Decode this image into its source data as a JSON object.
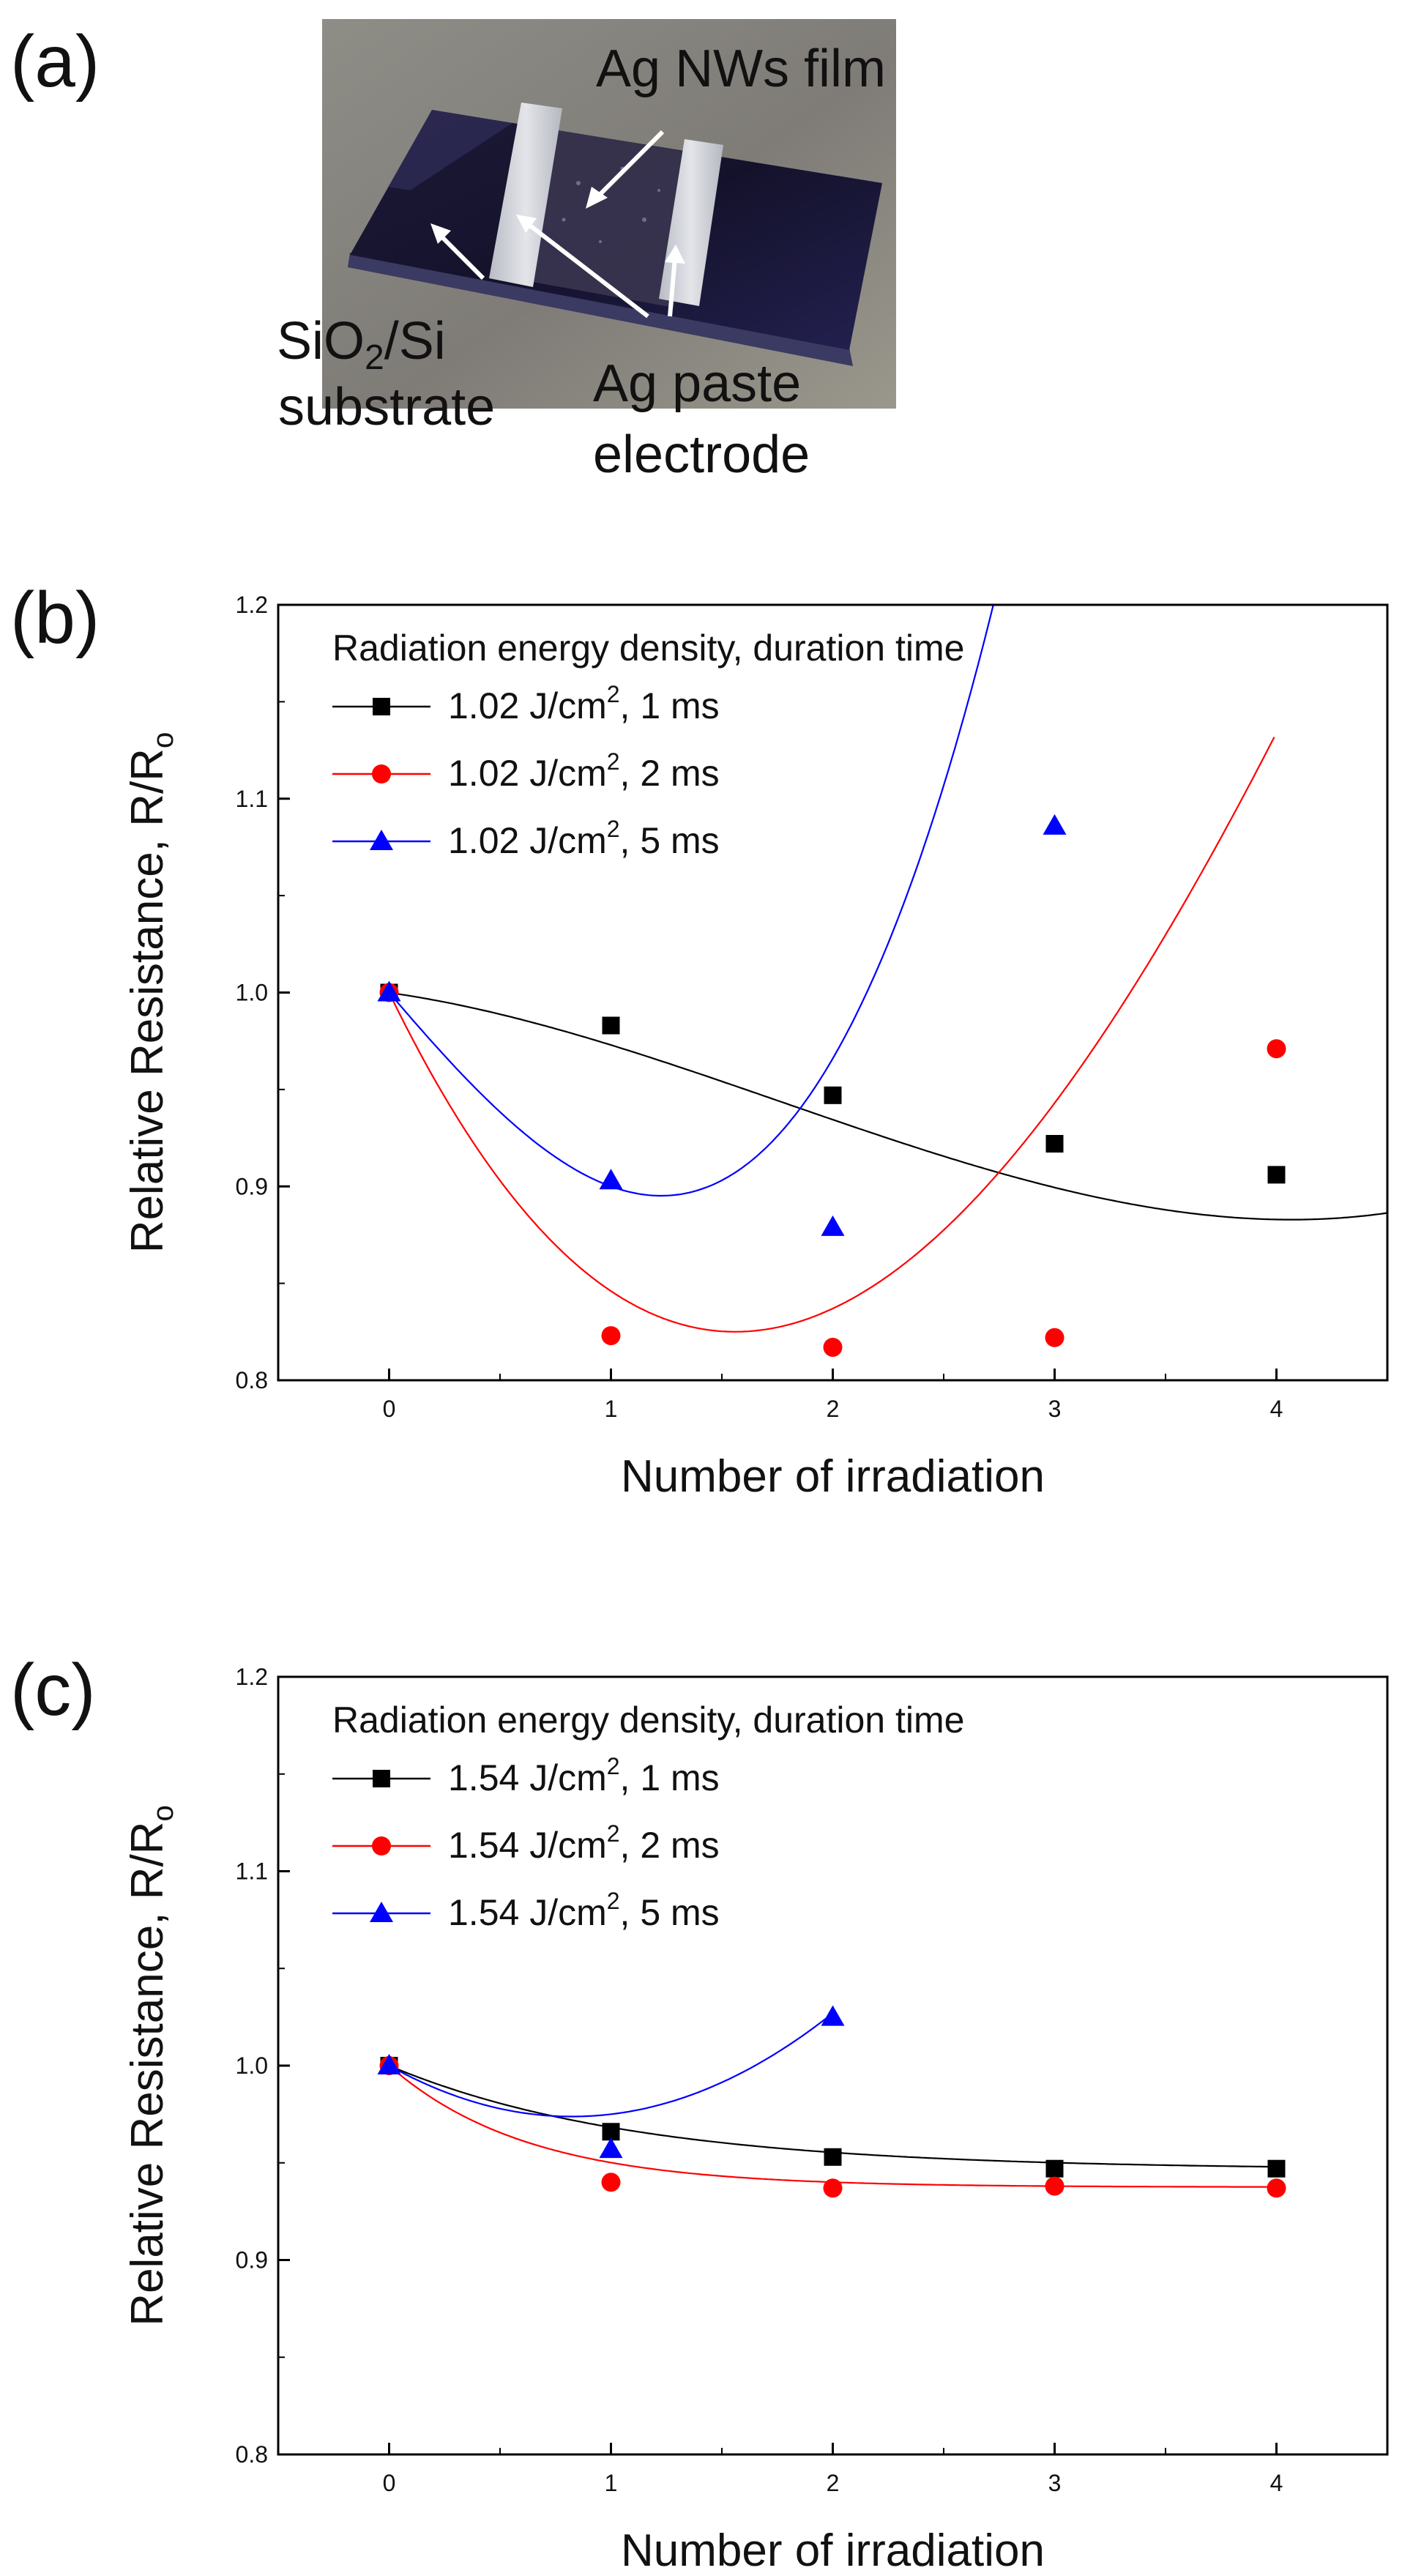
{
  "panels": {
    "a": {
      "label": "(a)"
    },
    "b": {
      "label": "(b)"
    },
    "c": {
      "label": "(c)"
    }
  },
  "photo": {
    "labels": {
      "film": "Ag NWs film",
      "substrate_line1_main": "SiO",
      "substrate_line1_sub": "2",
      "substrate_line1_rest": "/Si",
      "substrate_line2": "substrate",
      "electrode_line1": "Ag paste",
      "electrode_line2": "electrode"
    },
    "colors": {
      "background": "#8c8a82",
      "substrate": "#15132b",
      "electrode": "#c9ccd2",
      "film": "#3a3550"
    }
  },
  "chart_data": [
    {
      "type": "scatter",
      "panel": "b",
      "xlabel": "Number of irradiation",
      "ylabel_main": "Relative Resistance, R/R",
      "ylabel_sub": "o",
      "xlim": [
        -0.5,
        4.5
      ],
      "ylim": [
        0.8,
        1.2
      ],
      "xticks": [
        "0",
        "1",
        "2",
        "3",
        "4"
      ],
      "xtick_values": [
        0,
        1,
        2,
        3,
        4
      ],
      "yticks": [
        "0.8",
        "0.9",
        "1.0",
        "1.1",
        "1.2"
      ],
      "ytick_values": [
        0.8,
        0.9,
        1.0,
        1.1,
        1.2
      ],
      "legend_title": "Radiation energy density, duration time",
      "legend_position": "top-left",
      "series": [
        {
          "name_pre": "1.02 J/cm",
          "name_sup": "2",
          "name_post": ", 1 ms",
          "marker": "square",
          "color": "#000000",
          "x": [
            0,
            1,
            2,
            3,
            4
          ],
          "y": [
            1.0,
            0.983,
            0.947,
            0.922,
            0.906
          ],
          "fit": [
            0.99993,
            -0.01625,
            -0.01325,
            0.0025
          ]
        },
        {
          "name_pre": "1.02 J/cm",
          "name_sup": "2",
          "name_post": ", 2 ms",
          "marker": "circle",
          "color": "#ff0000",
          "x": [
            0,
            1,
            2,
            3,
            4
          ],
          "y": [
            1.0,
            0.823,
            0.817,
            0.822,
            0.971
          ],
          "fit": [
            1.0,
            -0.2365,
            0.0875,
            -0.005
          ]
        },
        {
          "name_pre": "1.02 J/cm",
          "name_sup": "2",
          "name_post": ", 5 ms",
          "marker": "triangle",
          "color": "#0000ff",
          "x": [
            0,
            1,
            2,
            3
          ],
          "y": [
            1.0,
            0.903,
            0.879,
            1.086
          ],
          "fit": [
            1.0,
            -0.13433,
            0.01,
            0.02433
          ]
        }
      ]
    },
    {
      "type": "scatter",
      "panel": "c",
      "xlabel": "Number of irradiation",
      "ylabel_main": "Relative Resistance, R/R",
      "ylabel_sub": "o",
      "xlim": [
        -0.5,
        4.5
      ],
      "ylim": [
        0.8,
        1.2
      ],
      "xticks": [
        "0",
        "1",
        "2",
        "3",
        "4"
      ],
      "xtick_values": [
        0,
        1,
        2,
        3,
        4
      ],
      "yticks": [
        "0.8",
        "0.9",
        "1.0",
        "1.1",
        "1.2"
      ],
      "ytick_values": [
        0.8,
        0.9,
        1.0,
        1.1,
        1.2
      ],
      "legend_title": "Radiation energy density, duration time",
      "legend_position": "top-left",
      "series": [
        {
          "name_pre": "1.54 J/cm",
          "name_sup": "2",
          "name_post": ", 1 ms",
          "marker": "square",
          "color": "#000000",
          "x": [
            0,
            1,
            2,
            3,
            4
          ],
          "y": [
            1.0,
            0.966,
            0.953,
            0.947,
            0.947
          ],
          "expfit": [
            0.9465,
            0.0535,
            0.9
          ]
        },
        {
          "name_pre": "1.54 J/cm",
          "name_sup": "2",
          "name_post": ", 2 ms",
          "marker": "circle",
          "color": "#ff0000",
          "x": [
            0,
            1,
            2,
            3,
            4
          ],
          "y": [
            1.0,
            0.94,
            0.937,
            0.938,
            0.937
          ],
          "expfit": [
            0.9375,
            0.0625,
            1.6
          ]
        },
        {
          "name_pre": "1.54 J/cm",
          "name_sup": "2",
          "name_post": ", 5 ms",
          "marker": "triangle",
          "color": "#0000ff",
          "x": [
            0,
            1,
            2
          ],
          "y": [
            1.0,
            0.957,
            1.025
          ],
          "fit": [
            1.0,
            -0.0635,
            0.0385,
            0.0
          ]
        }
      ]
    }
  ]
}
